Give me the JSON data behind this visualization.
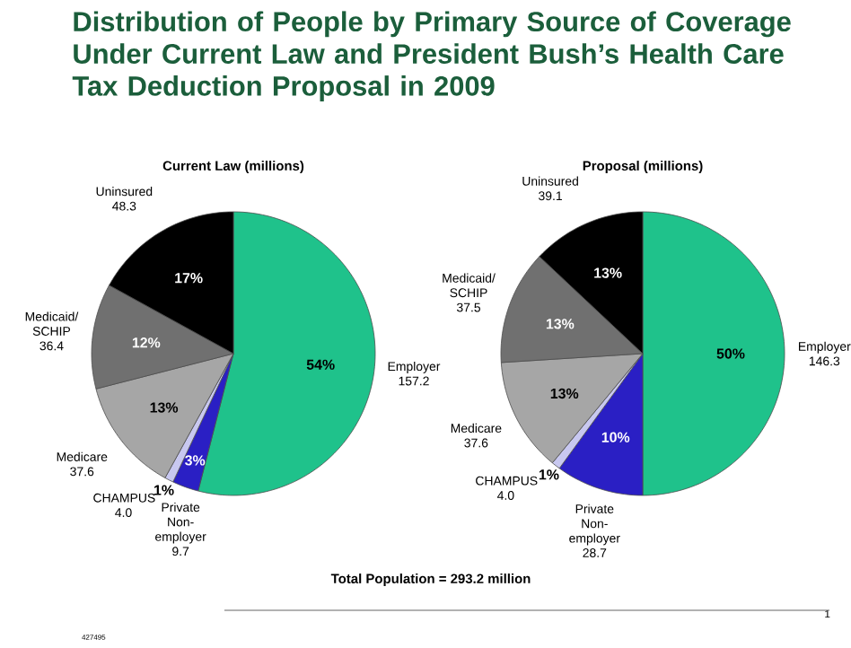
{
  "chart_data": [
    {
      "type": "pie",
      "title": "Distribution of People by Primary Source of Coverage Under Current Law and President Bush’s Health Care Tax Deduction Proposal in 2009",
      "subtitle": "Current Law (millions)",
      "categories": [
        "Employer 157.2",
        "Private Non-employer 9.7",
        "CHAMPUS 4.0",
        "Medicare 37.6",
        "Medicaid/ SCHIP 36.4",
        "Uninsured 48.3"
      ],
      "values": [
        54,
        3,
        1,
        13,
        12,
        17
      ],
      "colors": [
        "#1fc28b",
        "#2a1fc4",
        "#c8c8f0",
        "#a6a6a6",
        "#707070",
        "#000000"
      ],
      "value_labels": [
        "54%",
        "3%",
        "1%",
        "13%",
        "12%",
        "17%"
      ],
      "annotations": [
        "Total Population = 293.2 million",
        "427495",
        "1"
      ]
    },
    {
      "type": "pie",
      "subtitle": "Proposal (millions)",
      "categories": [
        "Employer 146.3",
        "Private Non-employer 28.7",
        "CHAMPUS 4.0",
        "Medicare 37.6",
        "Medicaid/ SCHIP 37.5",
        "Uninsured 39.1"
      ],
      "values": [
        50,
        10,
        1,
        13,
        13,
        13
      ],
      "colors": [
        "#1fc28b",
        "#2a1fc4",
        "#c8c8f0",
        "#a6a6a6",
        "#707070",
        "#000000"
      ],
      "value_labels": [
        "50%",
        "10%",
        "1%",
        "13%",
        "13%",
        "13%"
      ]
    }
  ]
}
